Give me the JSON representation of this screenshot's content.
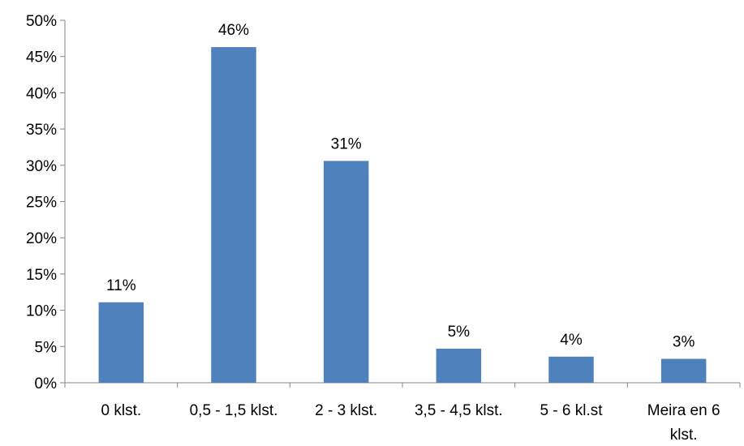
{
  "chart_data": {
    "type": "bar",
    "title": "",
    "xlabel": "",
    "ylabel": "",
    "categories": [
      [
        "0 klst."
      ],
      [
        "0,5 - 1,5 klst."
      ],
      [
        "2 - 3 klst."
      ],
      [
        "3,5 - 4,5 klst."
      ],
      [
        "5 - 6 kl.st"
      ],
      [
        "Meira en 6",
        "klst."
      ]
    ],
    "values": [
      11.1,
      46.3,
      30.6,
      4.7,
      3.6,
      3.3
    ],
    "data_labels": [
      "11%",
      "46%",
      "31%",
      "5%",
      "4%",
      "3%"
    ],
    "y_ticks": [
      {
        "value": 0,
        "label": "0%"
      },
      {
        "value": 5,
        "label": "5%"
      },
      {
        "value": 10,
        "label": "10%"
      },
      {
        "value": 15,
        "label": "15%"
      },
      {
        "value": 20,
        "label": "20%"
      },
      {
        "value": 25,
        "label": "25%"
      },
      {
        "value": 30,
        "label": "30%"
      },
      {
        "value": 35,
        "label": "35%"
      },
      {
        "value": 40,
        "label": "40%"
      },
      {
        "value": 45,
        "label": "45%"
      },
      {
        "value": 50,
        "label": "50%"
      }
    ],
    "ylim": [
      0,
      50
    ],
    "grid": false,
    "legend": "none",
    "colors": {
      "bar": "#4F81BD",
      "axis": "#868686",
      "text": "#000000"
    }
  }
}
